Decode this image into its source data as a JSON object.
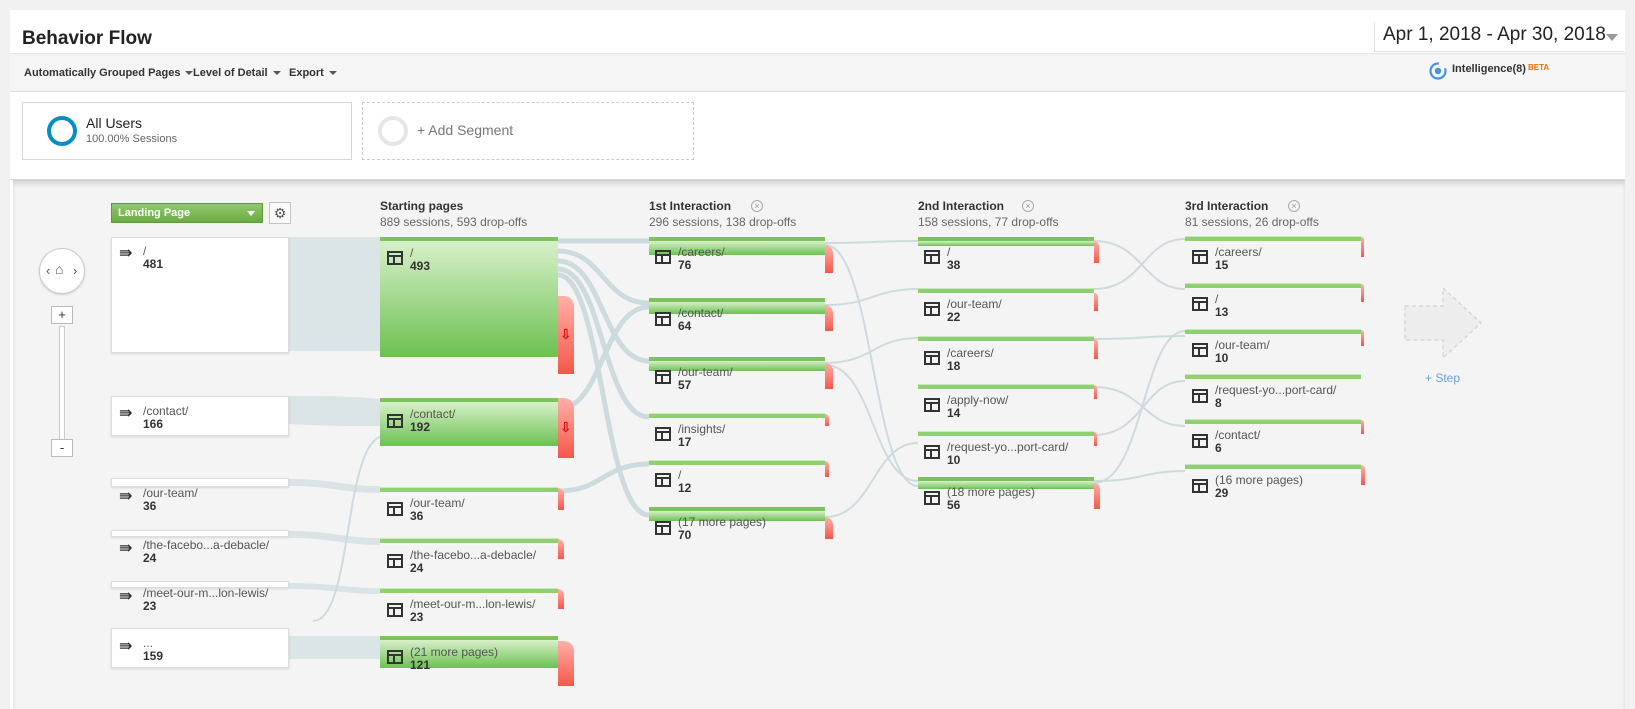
{
  "header": {
    "title": "Behavior Flow",
    "date_range": "Apr 1, 2018 - Apr 30, 2018"
  },
  "toolbar": {
    "grouping": "Automatically Grouped Pages",
    "detail": "Level of Detail",
    "export": "Export",
    "intelligence": "Intelligence(8)",
    "beta": "BETA"
  },
  "segments": {
    "primary_name": "All Users",
    "primary_sub": "100.00% Sessions",
    "add_label": "+ Add Segment"
  },
  "flow": {
    "dimension": "Landing Page",
    "step_label": "+ Step",
    "columns": [
      {
        "title": "Starting pages",
        "summary": "889 sessions, 593 drop-offs"
      },
      {
        "title": "1st Interaction",
        "summary": "296 sessions, 138 drop-offs"
      },
      {
        "title": "2nd Interaction",
        "summary": "158 sessions, 77 drop-offs"
      },
      {
        "title": "3rd Interaction",
        "summary": "81 sessions, 26 drop-offs"
      }
    ],
    "landing": [
      {
        "page": "/",
        "count": "481"
      },
      {
        "page": "/contact/",
        "count": "166"
      },
      {
        "page": "/our-team/",
        "count": "36"
      },
      {
        "page": "/the-facebo...a-debacle/",
        "count": "24"
      },
      {
        "page": "/meet-our-m...lon-lewis/",
        "count": "23"
      },
      {
        "page": "...",
        "count": "159"
      }
    ],
    "starting": [
      {
        "page": "/",
        "count": "493"
      },
      {
        "page": "/contact/",
        "count": "192"
      },
      {
        "page": "/our-team/",
        "count": "36"
      },
      {
        "page": "/the-facebo...a-debacle/",
        "count": "24"
      },
      {
        "page": "/meet-our-m...lon-lewis/",
        "count": "23"
      },
      {
        "page": "(21 more pages)",
        "count": "121"
      }
    ],
    "first": [
      {
        "page": "/careers/",
        "count": "76"
      },
      {
        "page": "/contact/",
        "count": "64"
      },
      {
        "page": "/our-team/",
        "count": "57"
      },
      {
        "page": "/insights/",
        "count": "17"
      },
      {
        "page": "/",
        "count": "12"
      },
      {
        "page": "(17 more pages)",
        "count": "70"
      }
    ],
    "second": [
      {
        "page": "/",
        "count": "38"
      },
      {
        "page": "/our-team/",
        "count": "22"
      },
      {
        "page": "/careers/",
        "count": "18"
      },
      {
        "page": "/apply-now/",
        "count": "14"
      },
      {
        "page": "/request-yo...port-card/",
        "count": "10"
      },
      {
        "page": "(18 more pages)",
        "count": "56"
      }
    ],
    "third": [
      {
        "page": "/careers/",
        "count": "15"
      },
      {
        "page": "/",
        "count": "13"
      },
      {
        "page": "/our-team/",
        "count": "10"
      },
      {
        "page": "/request-yo...port-card/",
        "count": "8"
      },
      {
        "page": "/contact/",
        "count": "6"
      },
      {
        "page": "(16 more pages)",
        "count": "29"
      }
    ]
  }
}
